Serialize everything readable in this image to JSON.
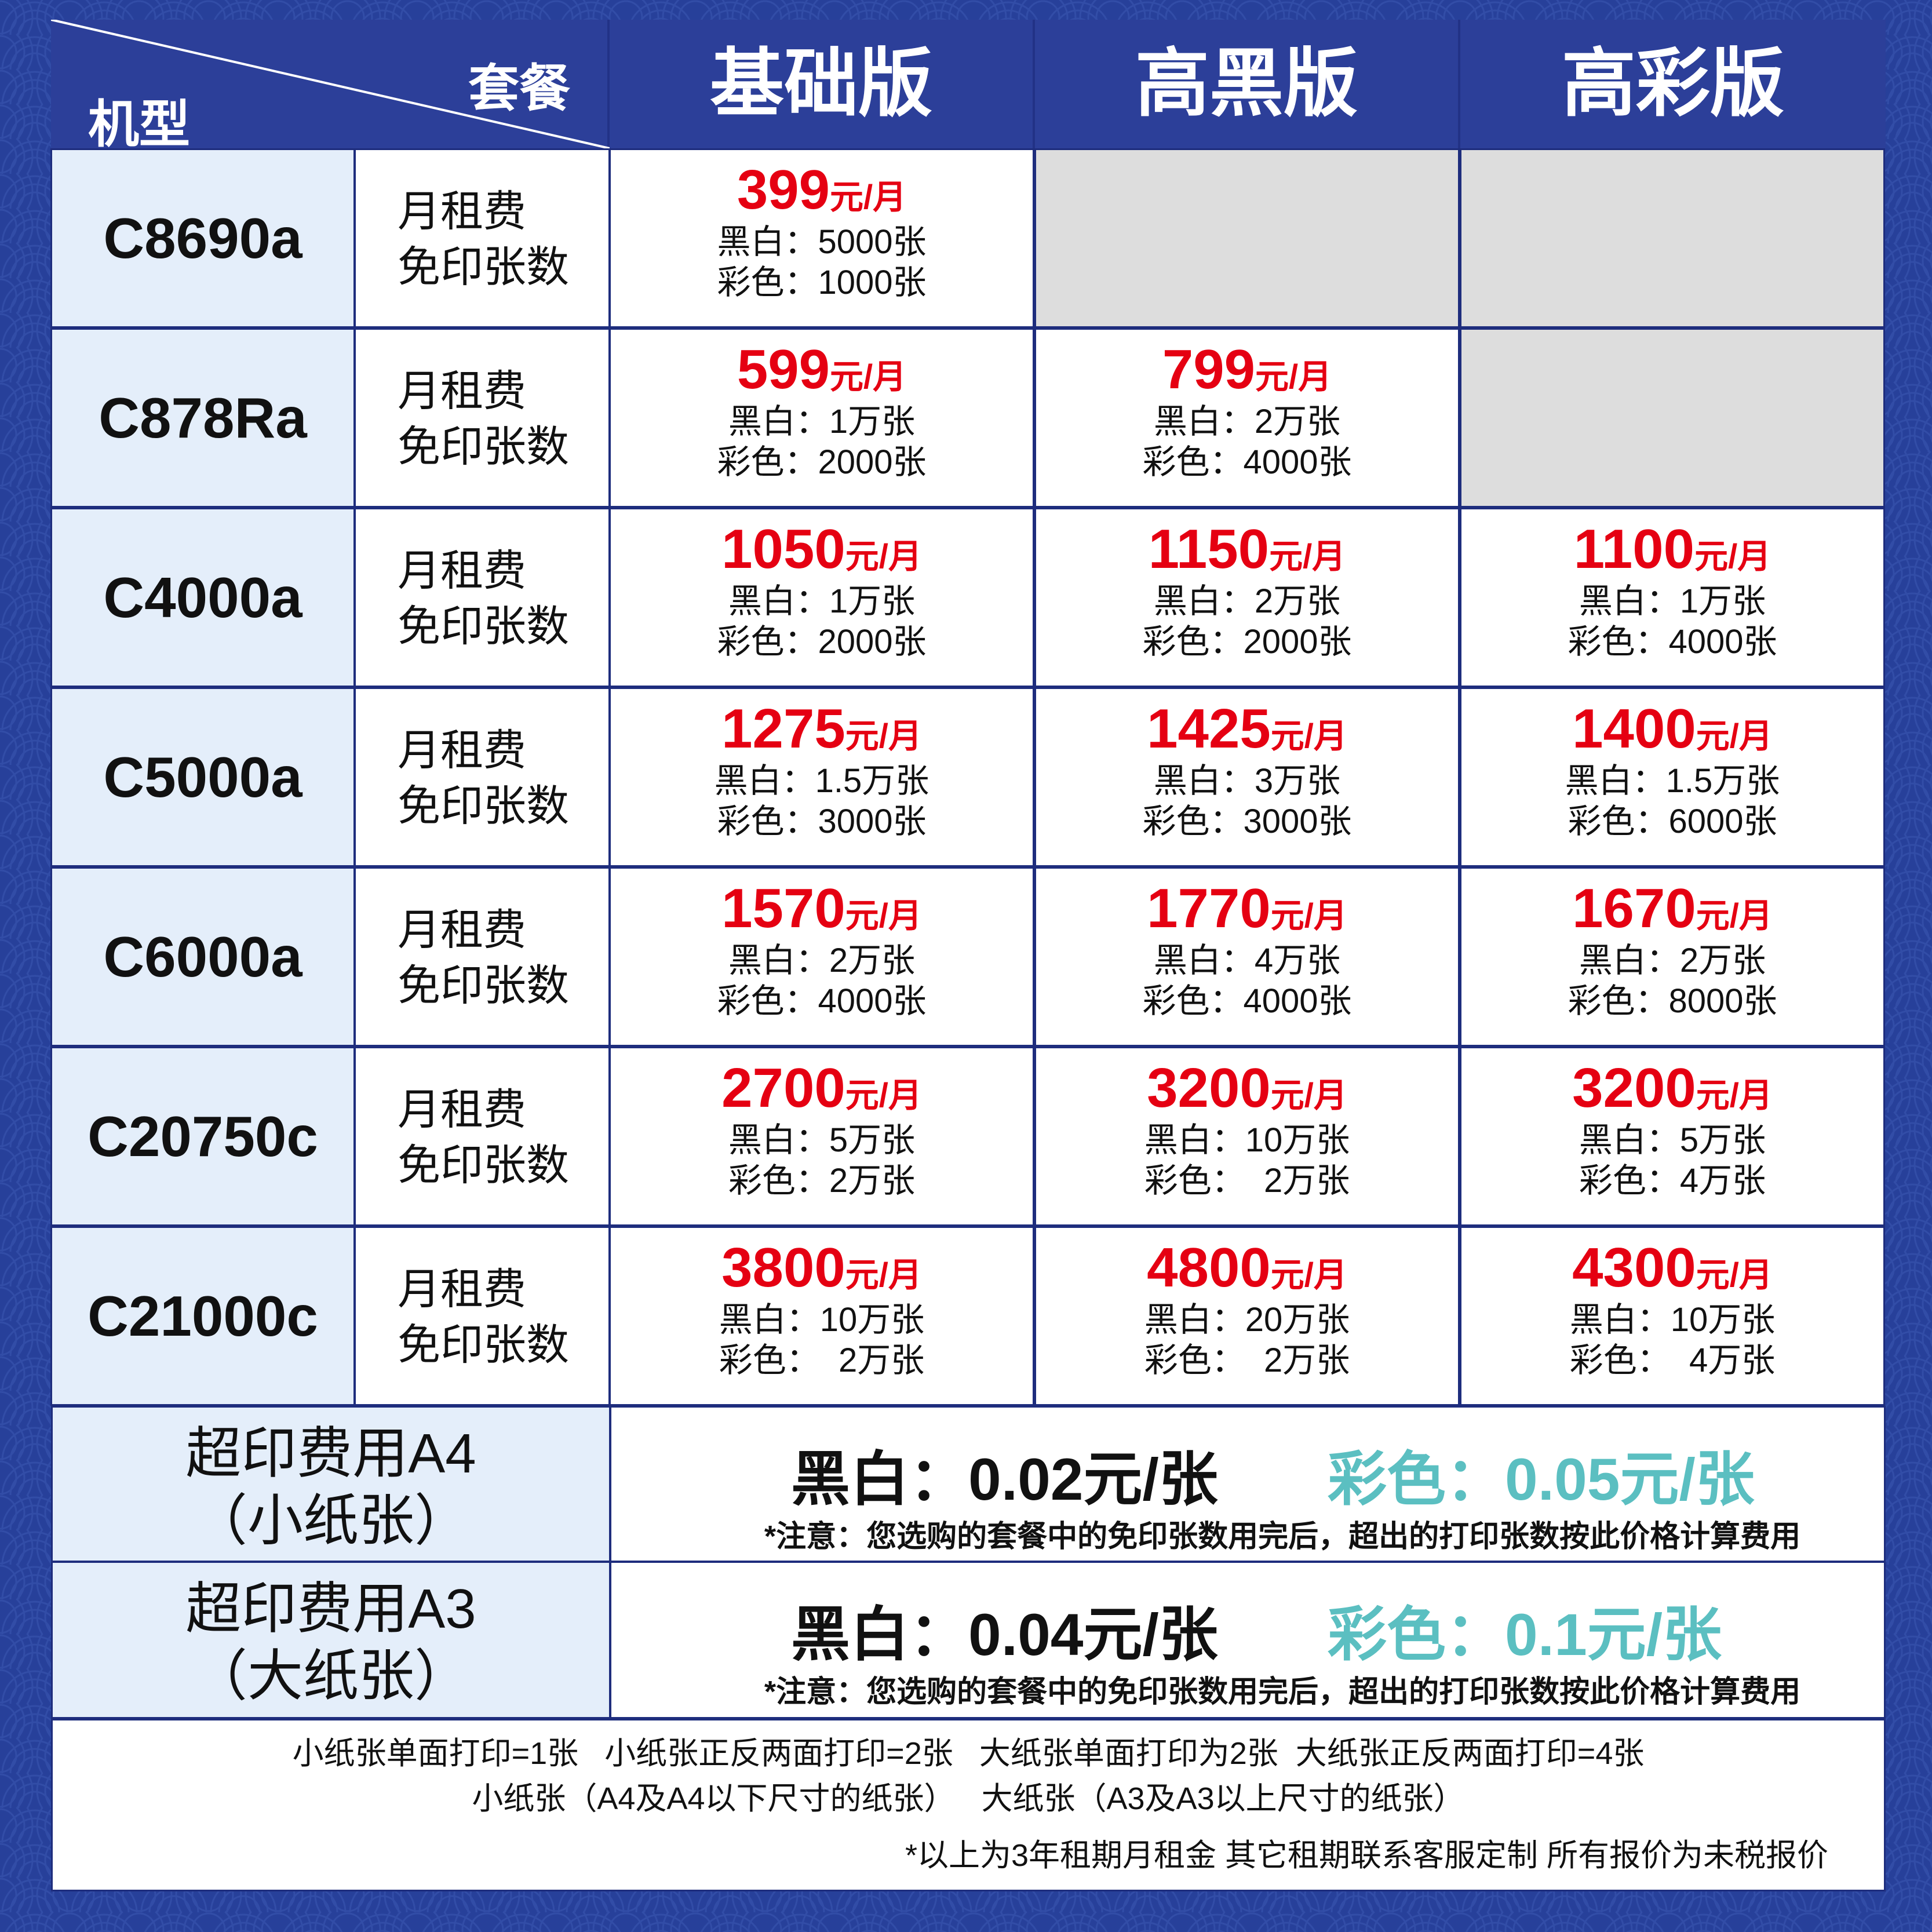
{
  "header": {
    "model_label": "机型",
    "plan_label": "套餐",
    "columns": [
      "基础版",
      "高黑版",
      "高彩版"
    ]
  },
  "row_label": {
    "line1": "月租费",
    "line2": "免印张数"
  },
  "price_unit": "元/月",
  "rows": [
    {
      "model": "C8690a",
      "plans": [
        {
          "price": "399",
          "bw": "黑白：5000张",
          "color": "彩色：1000张"
        },
        null,
        null
      ]
    },
    {
      "model": "C878Ra",
      "plans": [
        {
          "price": "599",
          "bw": "黑白：1万张",
          "color": "彩色：2000张"
        },
        {
          "price": "799",
          "bw": "黑白：2万张",
          "color": "彩色：4000张"
        },
        null
      ]
    },
    {
      "model": "C4000a",
      "plans": [
        {
          "price": "1050",
          "bw": "黑白：1万张",
          "color": "彩色：2000张"
        },
        {
          "price": "1150",
          "bw": "黑白：2万张",
          "color": "彩色：2000张"
        },
        {
          "price": "1100",
          "bw": "黑白：1万张",
          "color": "彩色：4000张"
        }
      ]
    },
    {
      "model": "C5000a",
      "plans": [
        {
          "price": "1275",
          "bw": "黑白：1.5万张",
          "color": "彩色：3000张"
        },
        {
          "price": "1425",
          "bw": "黑白：3万张",
          "color": "彩色：3000张"
        },
        {
          "price": "1400",
          "bw": "黑白：1.5万张",
          "color": "彩色：6000张"
        }
      ]
    },
    {
      "model": "C6000a",
      "plans": [
        {
          "price": "1570",
          "bw": "黑白：2万张",
          "color": "彩色：4000张"
        },
        {
          "price": "1770",
          "bw": "黑白：4万张",
          "color": "彩色：4000张"
        },
        {
          "price": "1670",
          "bw": "黑白：2万张",
          "color": "彩色：8000张"
        }
      ]
    },
    {
      "model": "C20750c",
      "plans": [
        {
          "price": "2700",
          "bw": "黑白：5万张",
          "color": "彩色：2万张"
        },
        {
          "price": "3200",
          "bw": "黑白：10万张",
          "color": "彩色：  2万张"
        },
        {
          "price": "3200",
          "bw": "黑白：5万张",
          "color": "彩色：4万张"
        }
      ]
    },
    {
      "model": "C21000c",
      "plans": [
        {
          "price": "3800",
          "bw": "黑白：10万张",
          "color": "彩色：  2万张"
        },
        {
          "price": "4800",
          "bw": "黑白：20万张",
          "color": "彩色：  2万张"
        },
        {
          "price": "4300",
          "bw": "黑白：10万张",
          "color": "彩色：  4万张"
        }
      ]
    }
  ],
  "overage": [
    {
      "title1": "超印费用A4",
      "title2": "（小纸张）",
      "bw": "黑白：0.02元/张",
      "color": "彩色：0.05元/张",
      "note": "*注意：您选购的套餐中的免印张数用完后，超出的打印张数按此价格计算费用"
    },
    {
      "title1": "超印费用A3",
      "title2": "（大纸张）",
      "bw": "黑白：0.04元/张",
      "color": "彩色：0.1元/张",
      "note": "*注意：您选购的套餐中的免印张数用完后，超出的打印张数按此价格计算费用"
    }
  ],
  "footer": {
    "line1": "小纸张单面打印=1张   小纸张正反两面打印=2张   大纸张单面打印为2张  大纸张正反两面打印=4张",
    "line2": "小纸张（A4及A4以下尺寸的纸张）   大纸张（A3及A3以上尺寸的纸张）",
    "note": "*以上为3年租期月租金  其它租期联系客服定制  所有报价为未税报价"
  },
  "colors": {
    "background": "#27409a",
    "header": "#2c3f99",
    "price_red": "#e50012",
    "color_teal": "#5bbfc1",
    "model_cell": "#e4eefa",
    "empty_cell": "#dddddd"
  }
}
